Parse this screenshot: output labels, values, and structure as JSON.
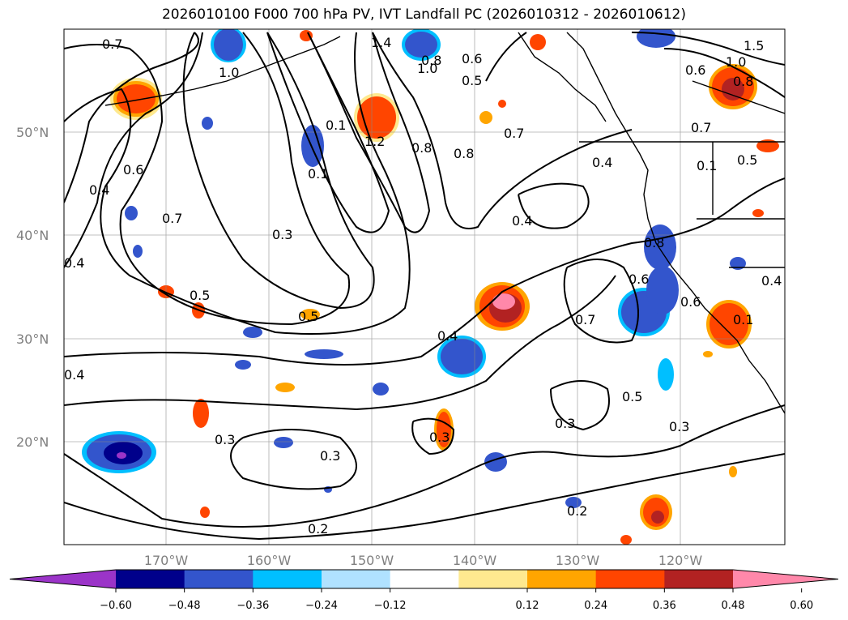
{
  "title": "2026010100 F000 700 hPa PV, IVT Landfall PC (2026010312 - 2026010612)",
  "lat_labels": [
    "50°N",
    "40°N",
    "30°N",
    "20°N"
  ],
  "lon_labels": [
    "170°W",
    "160°W",
    "150°W",
    "140°W",
    "130°W",
    "120°W"
  ],
  "contour_labels": [
    "0.7",
    "0.8",
    "1.4",
    "1.0",
    "0.6",
    "1.5",
    "1.0",
    "0.8",
    "0.6",
    "0.7",
    "0.5",
    "0.4",
    "0.6",
    "0.4",
    "0.1",
    "1.2",
    "0.8",
    "0.8",
    "0.7",
    "0.4",
    "0.1",
    "0.3",
    "0.4",
    "0.5",
    "0.5",
    "0.4",
    "0.8",
    "0.6",
    "0.6",
    "0.7",
    "0.5",
    "0.4",
    "0.3",
    "0.3",
    "0.3",
    "0.3",
    "0.2",
    "0.2",
    "0.3",
    "0.7",
    "0.1",
    "0.1",
    "0.4",
    "0.5",
    "1.0"
  ],
  "colorbar": {
    "ticks": [
      "−0.60",
      "−0.48",
      "−0.36",
      "−0.24",
      "−0.12",
      "0.12",
      "0.24",
      "0.36",
      "0.48",
      "0.60"
    ],
    "colors": [
      "#9b34c8",
      "#00008b",
      "#3355cc",
      "#00bfff",
      "#b0e2ff",
      "#ffffff",
      "#fee98f",
      "#ffa500",
      "#ff4500",
      "#b22222",
      "#ff88aa"
    ]
  }
}
